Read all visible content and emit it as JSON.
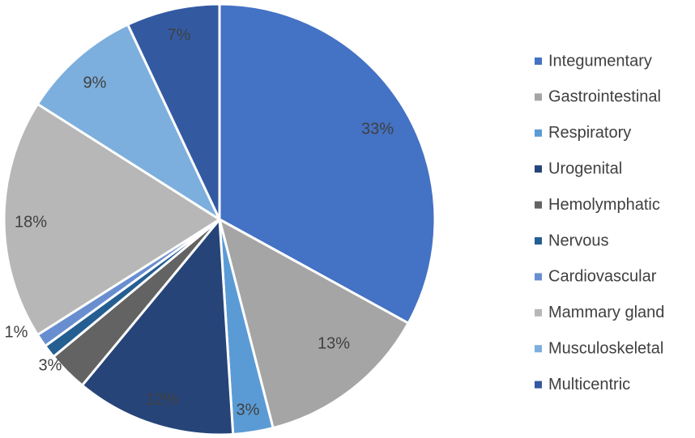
{
  "chart_data": {
    "type": "pie",
    "title": "",
    "legend_position": "right",
    "slices": [
      {
        "label": "Integumentary",
        "value": 33,
        "display": "33%",
        "color": "#4472C4"
      },
      {
        "label": "Gastrointestinal",
        "value": 13,
        "display": "13%",
        "color": "#A5A5A5"
      },
      {
        "label": "Respiratory",
        "value": 3,
        "display": "3%",
        "color": "#5B9BD5"
      },
      {
        "label": "Urogenital",
        "value": 12,
        "display": "12%",
        "color": "#264478"
      },
      {
        "label": "Hemolymphatic",
        "value": 3,
        "display": "3%",
        "color": "#636363"
      },
      {
        "label": "Nervous",
        "value": 1,
        "display": "",
        "color": "#255E91"
      },
      {
        "label": "Cardiovascular",
        "value": 1,
        "display": "1%",
        "color": "#698ED0"
      },
      {
        "label": "Mammary gland",
        "value": 18,
        "display": "18%",
        "color": "#B7B7B7"
      },
      {
        "label": "Musculoskeletal",
        "value": 9,
        "display": "9%",
        "color": "#7CAFDD"
      },
      {
        "label": "Multicentric",
        "value": 7,
        "display": "7%",
        "color": "#335AA1"
      }
    ]
  }
}
